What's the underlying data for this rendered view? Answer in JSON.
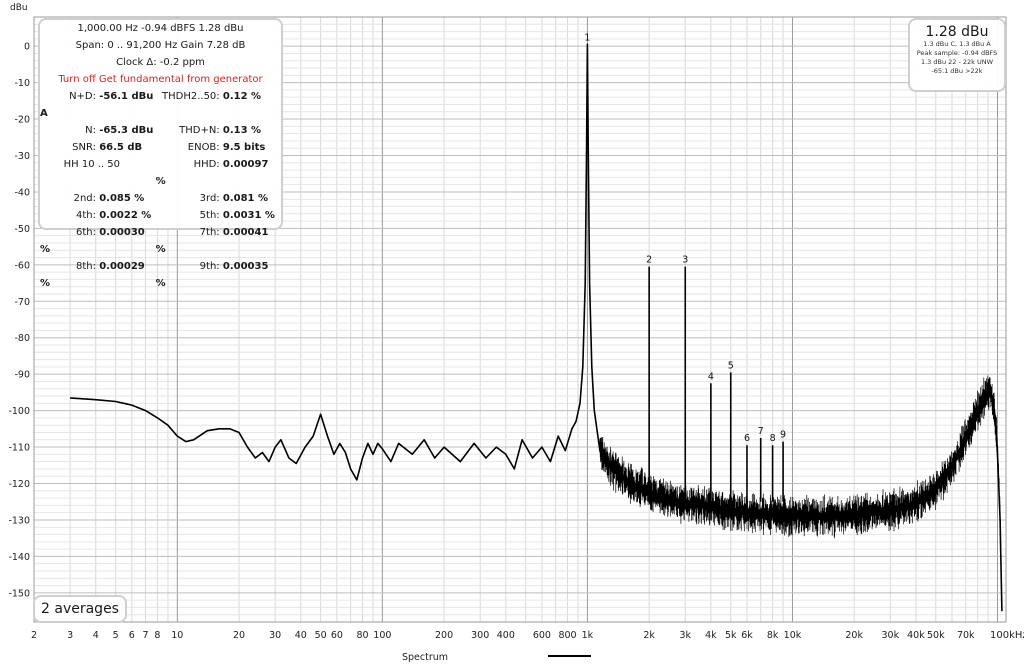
{
  "chart_data": {
    "type": "line",
    "ylabel": "dBu",
    "xlabel": "Spectrum",
    "x_unit_label": "100kHz",
    "x_scale": "log",
    "xlim": [
      2,
      110000
    ],
    "ylim": [
      -158,
      8
    ],
    "y_ticks": [
      0,
      -10,
      -20,
      -30,
      -40,
      -50,
      -60,
      -70,
      -80,
      -90,
      -100,
      -110,
      -120,
      -130,
      -140,
      -150
    ],
    "x_ticks": [
      {
        "v": 2,
        "t": "2"
      },
      {
        "v": 3,
        "t": "3"
      },
      {
        "v": 4,
        "t": "4"
      },
      {
        "v": 5,
        "t": "5"
      },
      {
        "v": 6,
        "t": "6"
      },
      {
        "v": 7,
        "t": "7"
      },
      {
        "v": 8,
        "t": "8"
      },
      {
        "v": 10,
        "t": "10"
      },
      {
        "v": 20,
        "t": "20"
      },
      {
        "v": 30,
        "t": "30"
      },
      {
        "v": 40,
        "t": "40"
      },
      {
        "v": 50,
        "t": "50"
      },
      {
        "v": 60,
        "t": "60"
      },
      {
        "v": 80,
        "t": "80"
      },
      {
        "v": 100,
        "t": "100"
      },
      {
        "v": 200,
        "t": "200"
      },
      {
        "v": 300,
        "t": "300"
      },
      {
        "v": 400,
        "t": "400"
      },
      {
        "v": 600,
        "t": "600"
      },
      {
        "v": 800,
        "t": "800"
      },
      {
        "v": 1000,
        "t": "1k"
      },
      {
        "v": 2000,
        "t": "2k"
      },
      {
        "v": 3000,
        "t": "3k"
      },
      {
        "v": 4000,
        "t": "4k"
      },
      {
        "v": 5000,
        "t": "5k"
      },
      {
        "v": 6000,
        "t": "6k"
      },
      {
        "v": 8000,
        "t": "8k"
      },
      {
        "v": 10000,
        "t": "10k"
      },
      {
        "v": 20000,
        "t": "20k"
      },
      {
        "v": 30000,
        "t": "30k"
      },
      {
        "v": 40000,
        "t": "40k"
      },
      {
        "v": 50000,
        "t": "50k"
      },
      {
        "v": 70000,
        "t": "70k"
      }
    ],
    "grid": true,
    "series": [
      {
        "color": "#000000",
        "points": [
          [
            3,
            -96.5
          ],
          [
            4,
            -97
          ],
          [
            5,
            -97.5
          ],
          [
            6,
            -98.5
          ],
          [
            7,
            -100
          ],
          [
            8,
            -102
          ],
          [
            9,
            -104
          ],
          [
            10,
            -107
          ],
          [
            11,
            -108.5
          ],
          [
            12,
            -108
          ],
          [
            14,
            -105.5
          ],
          [
            16,
            -105
          ],
          [
            18,
            -105
          ],
          [
            20,
            -106
          ],
          [
            22,
            -110
          ],
          [
            24,
            -113
          ],
          [
            26,
            -111.5
          ],
          [
            28,
            -114
          ],
          [
            30,
            -110
          ],
          [
            32,
            -108
          ],
          [
            35,
            -113
          ],
          [
            38,
            -114.5
          ],
          [
            42,
            -110
          ],
          [
            46,
            -107
          ],
          [
            50,
            -101
          ],
          [
            54,
            -107
          ],
          [
            58,
            -112
          ],
          [
            62,
            -109
          ],
          [
            66,
            -111.5
          ],
          [
            70,
            -116
          ],
          [
            75,
            -119
          ],
          [
            80,
            -113
          ],
          [
            85,
            -109
          ],
          [
            90,
            -112
          ],
          [
            95,
            -109
          ],
          [
            100,
            -110.5
          ],
          [
            110,
            -114
          ],
          [
            120,
            -109
          ],
          [
            140,
            -112
          ],
          [
            160,
            -108
          ],
          [
            180,
            -113
          ],
          [
            200,
            -110
          ],
          [
            240,
            -114
          ],
          [
            280,
            -109
          ],
          [
            320,
            -113
          ],
          [
            360,
            -110
          ],
          [
            400,
            -112
          ],
          [
            440,
            -116
          ],
          [
            480,
            -108
          ],
          [
            540,
            -113
          ],
          [
            600,
            -110
          ],
          [
            660,
            -114
          ],
          [
            720,
            -107
          ],
          [
            780,
            -111
          ],
          [
            840,
            -105
          ],
          [
            880,
            -103
          ],
          [
            920,
            -98
          ],
          [
            950,
            -88
          ],
          [
            975,
            -65
          ],
          [
            990,
            -30
          ],
          [
            1000,
            0.5
          ],
          [
            1010,
            -30
          ],
          [
            1025,
            -65
          ],
          [
            1050,
            -88
          ],
          [
            1080,
            -100
          ],
          [
            1150,
            -111
          ],
          [
            1300,
            -116
          ],
          [
            1500,
            -119
          ],
          [
            1700,
            -121
          ],
          [
            2000,
            -123
          ],
          [
            2500,
            -125
          ],
          [
            3000,
            -126
          ],
          [
            4000,
            -127
          ],
          [
            5000,
            -128
          ],
          [
            6000,
            -128.5
          ],
          [
            7000,
            -129
          ],
          [
            8000,
            -129
          ],
          [
            10000,
            -129.5
          ],
          [
            15000,
            -129.5
          ],
          [
            20000,
            -129
          ],
          [
            25000,
            -128.5
          ],
          [
            30000,
            -128
          ],
          [
            40000,
            -126
          ],
          [
            50000,
            -122
          ],
          [
            60000,
            -116
          ],
          [
            70000,
            -108
          ],
          [
            80000,
            -101
          ],
          [
            88000,
            -96
          ],
          [
            93000,
            -95
          ],
          [
            97000,
            -101
          ],
          [
            100000,
            -112
          ],
          [
            103000,
            -130
          ],
          [
            105000,
            -155
          ]
        ]
      }
    ],
    "harmonics": [
      {
        "label": "1",
        "x": 1000,
        "y": 0.5
      },
      {
        "label": "2",
        "x": 2000,
        "y": -60.5
      },
      {
        "label": "3",
        "x": 3000,
        "y": -60.5
      },
      {
        "label": "4",
        "x": 4000,
        "y": -92.5
      },
      {
        "label": "5",
        "x": 5000,
        "y": -89.5
      },
      {
        "label": "6",
        "x": 6000,
        "y": -109.5
      },
      {
        "label": "7",
        "x": 7000,
        "y": -107.5
      },
      {
        "label": "8",
        "x": 8000,
        "y": -109.5
      },
      {
        "label": "9",
        "x": 9000,
        "y": -108.5
      }
    ]
  },
  "stats": {
    "line1": "1,000.00 Hz  -0.94 dBFS  1.28 dBu",
    "line2": "Span: 0 .. 91,200 Hz   Gain 7.28 dB",
    "line3": "Clock Δ: -0.2 ppm",
    "warning": "Turn off Get fundamental from generator",
    "nd_label": "N+D:",
    "nd_value": "-56.1 dBu A",
    "thd_label": "THDH2..50:",
    "thd_value": "0.12 %",
    "n_label": "N:",
    "n_value": "-65.3 dBu",
    "thdn_label": "THD+N:",
    "thdn_value": "0.13 %",
    "snr_label": "SNR:",
    "snr_value": "66.5 dB",
    "enob_label": "ENOB:",
    "enob_value": "9.5 bits",
    "hh_label": "HH 10 .. 50",
    "hhd_label": "HHD:",
    "hhd_value": "0.00097 %",
    "h2_label": "2nd:",
    "h2_value": "0.085 %",
    "h3_label": "3rd:",
    "h3_value": "0.081 %",
    "h4_label": "4th:",
    "h4_value": "0.0022 %",
    "h5_label": "5th:",
    "h5_value": "0.0031 %",
    "h6_label": "6th:",
    "h6_value": "0.00030 %",
    "h7_label": "7th:",
    "h7_value": "0.00041 %",
    "h8_label": "8th:",
    "h8_value": "0.00029 %",
    "h9_label": "9th:",
    "h9_value": "0.00035 %"
  },
  "level": {
    "value": "1.28 dBu",
    "l1": "1.3 dBu C, 1.3 dBu A",
    "l2": "Peak sample: -0.94 dBFS",
    "l3": "1.3 dBu 22 - 22k UNW",
    "l4": "-65.1 dBu >22k"
  },
  "averages": "2 averages"
}
